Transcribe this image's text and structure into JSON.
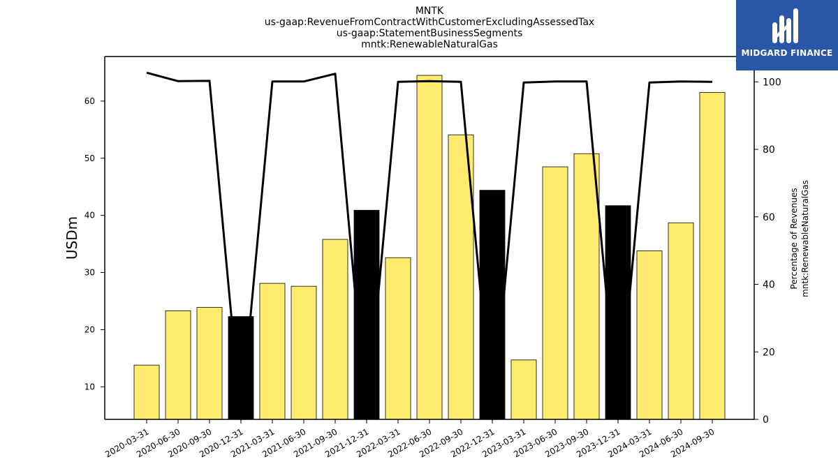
{
  "chart_data": {
    "type": "bar",
    "title_lines": [
      "MNTK",
      "us-gaap:RevenueFromContractWithCustomerExcludingAssessedTax",
      "us-gaap:StatementBusinessSegments",
      "mntk:RenewableNaturalGas"
    ],
    "ylabel": "USDm",
    "y2label_lines": [
      "Percentage of Revenues",
      "mntk:RenewableNaturalGas"
    ],
    "ylim": [
      4.3,
      67.8
    ],
    "y2lim": [
      0,
      107.5
    ],
    "yticks": [
      10,
      20,
      30,
      40,
      50,
      60
    ],
    "y2ticks": [
      0,
      20,
      40,
      60,
      80,
      100
    ],
    "categories": [
      "2020-03-31",
      "2020-06-30",
      "2020-09-30",
      "2020-12-31",
      "2021-03-31",
      "2021-06-30",
      "2021-09-30",
      "2021-12-31",
      "2022-03-31",
      "2022-06-30",
      "2022-09-30",
      "2022-12-31",
      "2023-03-31",
      "2023-06-30",
      "2023-09-30",
      "2023-12-31",
      "2024-03-31",
      "2024-06-30",
      "2024-09-30"
    ],
    "series": [
      {
        "values": [
          13.8,
          23.3,
          23.9,
          22.3,
          28.1,
          27.6,
          35.8,
          40.9,
          32.6,
          64.5,
          54.1,
          44.4,
          14.7,
          48.5,
          50.8,
          41.7,
          33.8,
          38.7,
          61.5
        ],
        "highlight": [
          false,
          false,
          false,
          true,
          false,
          false,
          false,
          true,
          false,
          false,
          false,
          true,
          false,
          false,
          false,
          true,
          false,
          false,
          false
        ],
        "color": "#ffec6e",
        "highlight_color": "#000000",
        "axis": "left"
      },
      {
        "values": [
          102.7,
          100.2,
          100.3,
          0,
          100.1,
          100.1,
          102.4,
          0,
          100.0,
          100.2,
          100.0,
          0,
          99.8,
          100.1,
          100.1,
          0,
          99.8,
          100.1,
          100.0
        ],
        "color": "#000000",
        "type": "line",
        "axis": "right"
      }
    ],
    "grid": false
  },
  "logo": {
    "text": "MIDGARD FINANCE",
    "color": "#2a56a8"
  }
}
